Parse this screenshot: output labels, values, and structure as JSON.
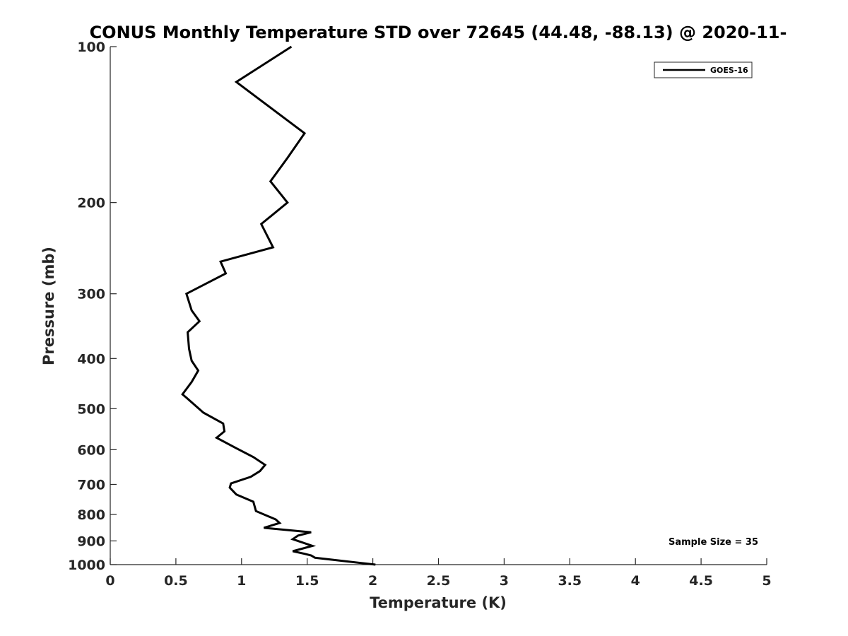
{
  "chart_data": {
    "type": "line",
    "title": "CONUS Monthly Temperature STD over 72645 (44.48, -88.13) @ 2020-11-",
    "xlabel": "Temperature (K)",
    "ylabel": "Pressure (mb)",
    "xlim": [
      0,
      5
    ],
    "ylim": [
      100,
      1000
    ],
    "y_scale": "log",
    "y_reversed": true,
    "grid": false,
    "x_ticks": [
      "0",
      "0.5",
      "1",
      "1.5",
      "2",
      "2.5",
      "3",
      "3.5",
      "4",
      "4.5",
      "5"
    ],
    "x_tick_values": [
      0,
      0.5,
      1,
      1.5,
      2,
      2.5,
      3,
      3.5,
      4,
      4.5,
      5
    ],
    "y_ticks": [
      "100",
      "200",
      "300",
      "400",
      "500",
      "600",
      "700",
      "800",
      "900",
      "1000"
    ],
    "y_tick_values": [
      100,
      200,
      300,
      400,
      500,
      600,
      700,
      800,
      900,
      1000
    ],
    "legend_position": "top-right",
    "annotation": "Sample Size = 35",
    "series": [
      {
        "name": "GOES-16",
        "color": "#000000",
        "points": [
          [
            1.38,
            100
          ],
          [
            0.96,
            117
          ],
          [
            1.48,
            147
          ],
          [
            1.35,
            164
          ],
          [
            1.22,
            182
          ],
          [
            1.35,
            200
          ],
          [
            1.15,
            220
          ],
          [
            1.24,
            244
          ],
          [
            0.84,
            260
          ],
          [
            0.88,
            274
          ],
          [
            0.58,
            300
          ],
          [
            0.62,
            323
          ],
          [
            0.68,
            339
          ],
          [
            0.59,
            356
          ],
          [
            0.6,
            383
          ],
          [
            0.62,
            404
          ],
          [
            0.67,
            422
          ],
          [
            0.62,
            444
          ],
          [
            0.55,
            469
          ],
          [
            0.58,
            476
          ],
          [
            0.71,
            509
          ],
          [
            0.86,
            534
          ],
          [
            0.87,
            553
          ],
          [
            0.81,
            569
          ],
          [
            0.96,
            596
          ],
          [
            1.09,
            620
          ],
          [
            1.18,
            642
          ],
          [
            1.14,
            660
          ],
          [
            1.07,
            677
          ],
          [
            0.92,
            697
          ],
          [
            0.91,
            710
          ],
          [
            0.96,
            732
          ],
          [
            1.09,
            756
          ],
          [
            1.11,
            788
          ],
          [
            1.26,
            818
          ],
          [
            1.29,
            831
          ],
          [
            1.17,
            849
          ],
          [
            1.53,
            866
          ],
          [
            1.43,
            879
          ],
          [
            1.39,
            893
          ],
          [
            1.54,
            920
          ],
          [
            1.39,
            942
          ],
          [
            1.48,
            953
          ],
          [
            1.53,
            960
          ],
          [
            1.56,
            970
          ],
          [
            2.02,
            1000
          ]
        ]
      }
    ]
  }
}
